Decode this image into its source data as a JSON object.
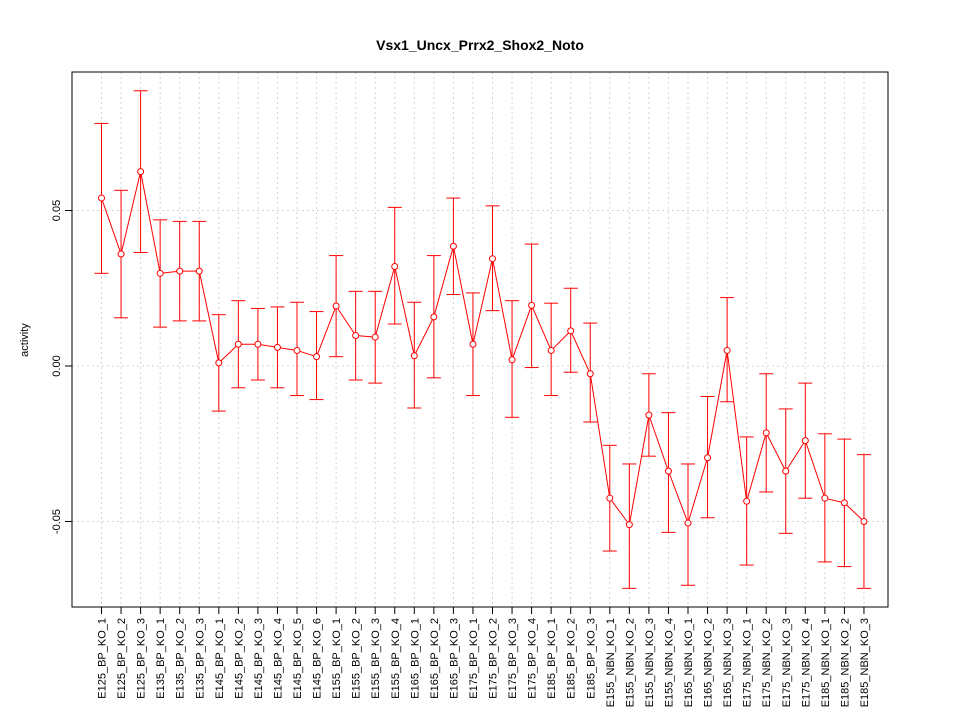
{
  "chart_data": {
    "type": "line",
    "title": "Vsx1_Uncx_Prrx2_Shox2_Noto",
    "xlabel": "",
    "ylabel": "activity",
    "ylim": [
      -0.078,
      0.095
    ],
    "yticks": [
      -0.05,
      0.0,
      0.05
    ],
    "ytick_labels": [
      "-0.05",
      "0.00",
      "0.05"
    ],
    "grid": true,
    "series_color": "#ff0000",
    "grid_color": "#d3d3d3",
    "categories": [
      "E125_BP_KO_1",
      "E125_BP_KO_2",
      "E125_BP_KO_3",
      "E135_BP_KO_1",
      "E135_BP_KO_2",
      "E135_BP_KO_3",
      "E145_BP_KO_1",
      "E145_BP_KO_2",
      "E145_BP_KO_3",
      "E145_BP_KO_4",
      "E145_BP_KO_5",
      "E145_BP_KO_6",
      "E155_BP_KO_1",
      "E155_BP_KO_2",
      "E155_BP_KO_3",
      "E155_BP_KO_4",
      "E165_BP_KO_1",
      "E165_BP_KO_2",
      "E165_BP_KO_3",
      "E175_BP_KO_1",
      "E175_BP_KO_2",
      "E175_BP_KO_3",
      "E175_BP_KO_4",
      "E185_BP_KO_1",
      "E185_BP_KO_2",
      "E185_BP_KO_3",
      "E155_NBN_KO_1",
      "E155_NBN_KO_2",
      "E155_NBN_KO_3",
      "E155_NBN_KO_4",
      "E165_NBN_KO_1",
      "E165_NBN_KO_2",
      "E165_NBN_KO_3",
      "E175_NBN_KO_1",
      "E175_NBN_KO_2",
      "E175_NBN_KO_3",
      "E175_NBN_KO_4",
      "E185_NBN_KO_1",
      "E185_NBN_KO_2",
      "E185_NBN_KO_3"
    ],
    "series": [
      {
        "values": [
          0.054,
          0.036,
          0.0625,
          0.0298,
          0.0305,
          0.0305,
          0.001,
          0.007,
          0.007,
          0.006,
          0.005,
          0.003,
          0.0193,
          0.0098,
          0.0093,
          0.032,
          0.0033,
          0.0158,
          0.0385,
          0.007,
          0.0345,
          0.002,
          0.0195,
          0.005,
          0.0113,
          -0.0025,
          -0.0425,
          -0.051,
          -0.0158,
          -0.0338,
          -0.0505,
          -0.0295,
          0.005,
          -0.0435,
          -0.0215,
          -0.0338,
          -0.024,
          -0.0425,
          -0.044,
          -0.05
        ],
        "upper": [
          0.078,
          0.0565,
          0.0885,
          0.047,
          0.0465,
          0.0465,
          0.0165,
          0.021,
          0.0185,
          0.019,
          0.0205,
          0.0175,
          0.0355,
          0.024,
          0.024,
          0.051,
          0.0205,
          0.0355,
          0.054,
          0.0235,
          0.0515,
          0.021,
          0.0392,
          0.0202,
          0.025,
          0.0138,
          -0.0255,
          -0.0315,
          -0.0025,
          -0.015,
          -0.0315,
          -0.0098,
          0.022,
          -0.0228,
          -0.0025,
          -0.0138,
          -0.0055,
          -0.0218,
          -0.0235,
          -0.0285
        ],
        "lower": [
          0.0298,
          0.0155,
          0.0365,
          0.0125,
          0.0145,
          0.0145,
          -0.0145,
          -0.007,
          -0.0045,
          -0.007,
          -0.0095,
          -0.0108,
          0.003,
          -0.0045,
          -0.0055,
          0.0135,
          -0.0135,
          -0.0038,
          0.023,
          -0.0095,
          0.0178,
          -0.0165,
          -0.0005,
          -0.0095,
          -0.002,
          -0.018,
          -0.0595,
          -0.0715,
          -0.029,
          -0.0535,
          -0.0705,
          -0.0488,
          -0.0115,
          -0.064,
          -0.0405,
          -0.0538,
          -0.0425,
          -0.063,
          -0.0645,
          -0.0715
        ]
      }
    ]
  }
}
